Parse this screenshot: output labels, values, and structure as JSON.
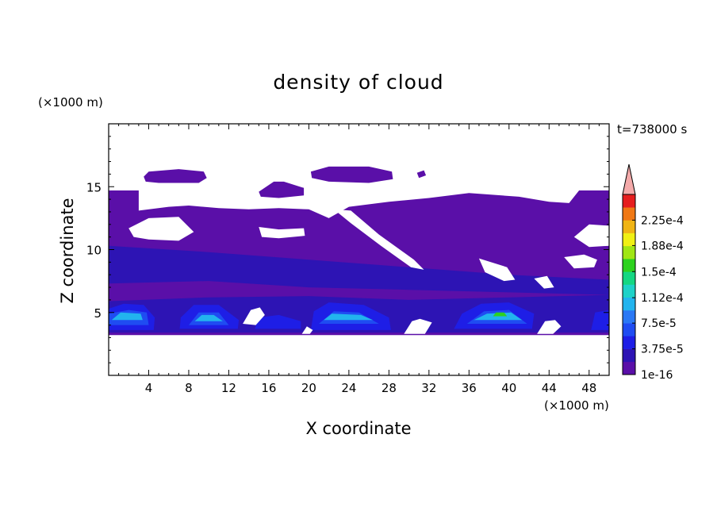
{
  "chart_data": {
    "type": "heatmap",
    "title": "density of cloud",
    "xlabel": "X coordinate",
    "ylabel": "Z coordinate",
    "x_unit": "(×1000 m)",
    "y_unit": "(×1000 m)",
    "time_label": "t=738000 s",
    "xlim": [
      0,
      50
    ],
    "ylim": [
      0,
      20
    ],
    "x_ticks": [
      4,
      8,
      12,
      16,
      20,
      24,
      28,
      32,
      36,
      40,
      44,
      48
    ],
    "y_ticks": [
      5,
      10,
      15
    ],
    "colorbar": {
      "labels": [
        "1e-16",
        "3.75e-5",
        "7.5e-5",
        "1.12e-4",
        "1.5e-4",
        "1.88e-4",
        "2.25e-4"
      ],
      "levels": [
        1e-16,
        1.875e-05,
        3.75e-05,
        5.625e-05,
        7.5e-05,
        9.375e-05,
        0.0001125,
        0.00013125,
        0.00015,
        0.00016875,
        0.0001875,
        0.00020625,
        0.000225,
        0.00024375
      ],
      "colors": [
        "#5a0fa8",
        "#2d14b4",
        "#1e1ee6",
        "#1f4cf2",
        "#2a78f5",
        "#22b4ee",
        "#1ed2c8",
        "#14d782",
        "#2dd21e",
        "#a0e614",
        "#f0f014",
        "#f0b414",
        "#f07814",
        "#e61e1e"
      ],
      "extend_color": "#f4aaaa"
    },
    "regions": [
      {
        "name": "main-cloud-band",
        "level": 0,
        "points": [
          [
            0,
            3.2
          ],
          [
            50,
            3.2
          ],
          [
            50,
            14.7
          ],
          [
            47,
            14.7
          ],
          [
            46,
            13.7
          ],
          [
            44,
            13.8
          ],
          [
            41,
            14.2
          ],
          [
            36,
            14.5
          ],
          [
            32,
            14.1
          ],
          [
            28,
            13.8
          ],
          [
            24,
            13.4
          ],
          [
            22,
            12.5
          ],
          [
            20,
            13.2
          ],
          [
            17,
            13.3
          ],
          [
            14,
            13.2
          ],
          [
            11,
            13.3
          ],
          [
            8,
            13.5
          ],
          [
            6,
            13.4
          ],
          [
            3,
            13.1
          ],
          [
            3,
            14.7
          ],
          [
            0,
            14.7
          ]
        ]
      },
      {
        "name": "cloud-puff-left",
        "level": 0,
        "points": [
          [
            3.5,
            15.8
          ],
          [
            4,
            16.2
          ],
          [
            7,
            16.4
          ],
          [
            9.5,
            16.2
          ],
          [
            9.8,
            15.7
          ],
          [
            9,
            15.3
          ],
          [
            5,
            15.3
          ],
          [
            3.7,
            15.4
          ]
        ]
      },
      {
        "name": "cloud-puff-mid",
        "level": 0,
        "points": [
          [
            15,
            14.6
          ],
          [
            16.5,
            15.4
          ],
          [
            17.5,
            15.4
          ],
          [
            19.5,
            14.9
          ],
          [
            19.5,
            14.3
          ],
          [
            17,
            14.1
          ],
          [
            15.2,
            14.2
          ]
        ]
      },
      {
        "name": "cloud-puff-top",
        "level": 0,
        "points": [
          [
            20.2,
            16.2
          ],
          [
            22,
            16.6
          ],
          [
            26,
            16.6
          ],
          [
            28.3,
            16.2
          ],
          [
            28.4,
            15.6
          ],
          [
            26,
            15.3
          ],
          [
            22,
            15.4
          ],
          [
            20.3,
            15.7
          ]
        ]
      },
      {
        "name": "cloud-speck",
        "level": 0,
        "points": [
          [
            30.8,
            16.1
          ],
          [
            31.5,
            16.3
          ],
          [
            31.7,
            15.9
          ],
          [
            31,
            15.7
          ]
        ]
      },
      {
        "name": "layer-7-12km",
        "level": 1,
        "points": [
          [
            0,
            7.3
          ],
          [
            10,
            7.5
          ],
          [
            20,
            7.0
          ],
          [
            30,
            6.8
          ],
          [
            40,
            6.6
          ],
          [
            50,
            6.4
          ],
          [
            50,
            7.6
          ],
          [
            40,
            8.0
          ],
          [
            30,
            8.6
          ],
          [
            20,
            9.2
          ],
          [
            10,
            9.8
          ],
          [
            0,
            10.3
          ]
        ]
      },
      {
        "name": "low-cloud-base",
        "level": 1,
        "points": [
          [
            0,
            3.4
          ],
          [
            50,
            3.4
          ],
          [
            50,
            6.4
          ],
          [
            40,
            6.2
          ],
          [
            30,
            6.0
          ],
          [
            20,
            6.3
          ],
          [
            10,
            6.2
          ],
          [
            0,
            5.9
          ]
        ]
      },
      {
        "name": "core-1",
        "level": 2,
        "points": [
          [
            0,
            3.6
          ],
          [
            4.5,
            3.6
          ],
          [
            4.6,
            4.6
          ],
          [
            3.5,
            5.6
          ],
          [
            1.5,
            5.7
          ],
          [
            0,
            5.3
          ]
        ]
      },
      {
        "name": "core-2",
        "level": 2,
        "points": [
          [
            7.1,
            3.7
          ],
          [
            12.9,
            3.7
          ],
          [
            13,
            4.4
          ],
          [
            11,
            5.6
          ],
          [
            8.5,
            5.6
          ],
          [
            7.2,
            4.6
          ]
        ]
      },
      {
        "name": "core-3",
        "level": 2,
        "points": [
          [
            14.6,
            3.7
          ],
          [
            19.2,
            3.7
          ],
          [
            19.2,
            4.3
          ],
          [
            17,
            4.8
          ],
          [
            15,
            4.6
          ]
        ]
      },
      {
        "name": "core-4",
        "level": 2,
        "points": [
          [
            20.2,
            3.6
          ],
          [
            28.2,
            3.6
          ],
          [
            28,
            4.6
          ],
          [
            25.5,
            5.6
          ],
          [
            22,
            5.8
          ],
          [
            20.5,
            5.1
          ]
        ]
      },
      {
        "name": "core-5",
        "level": 2,
        "points": [
          [
            34.5,
            3.7
          ],
          [
            42.3,
            3.7
          ],
          [
            42.5,
            4.9
          ],
          [
            40,
            5.8
          ],
          [
            37.2,
            5.7
          ],
          [
            35.3,
            4.9
          ]
        ]
      },
      {
        "name": "core-6",
        "level": 2,
        "points": [
          [
            48.2,
            3.6
          ],
          [
            50,
            3.6
          ],
          [
            50,
            5.2
          ],
          [
            48.6,
            5.0
          ]
        ]
      },
      {
        "name": "core-1-inner",
        "level": 3,
        "points": [
          [
            0,
            4.0
          ],
          [
            4,
            4.0
          ],
          [
            3.8,
            5.0
          ],
          [
            2,
            5.2
          ],
          [
            0,
            4.9
          ]
        ]
      },
      {
        "name": "core-2-inner",
        "level": 3,
        "points": [
          [
            8,
            4.0
          ],
          [
            12,
            4.0
          ],
          [
            11,
            5.0
          ],
          [
            9,
            5.0
          ]
        ]
      },
      {
        "name": "core-4-inner",
        "level": 3,
        "points": [
          [
            21,
            4.1
          ],
          [
            27,
            4.1
          ],
          [
            25,
            5.0
          ],
          [
            22.5,
            5.1
          ]
        ]
      },
      {
        "name": "core-5-inner",
        "level": 3,
        "points": [
          [
            35.8,
            4.1
          ],
          [
            41.8,
            4.1
          ],
          [
            40,
            5.2
          ],
          [
            37.5,
            5.1
          ]
        ]
      },
      {
        "name": "core-1-peak",
        "level": 5,
        "points": [
          [
            0.3,
            4.4
          ],
          [
            3.4,
            4.4
          ],
          [
            3.2,
            4.9
          ],
          [
            1.2,
            5.0
          ]
        ]
      },
      {
        "name": "core-2-peak",
        "level": 5,
        "points": [
          [
            8.6,
            4.3
          ],
          [
            11.4,
            4.3
          ],
          [
            10.5,
            4.8
          ],
          [
            9.3,
            4.8
          ]
        ]
      },
      {
        "name": "core-4-peak",
        "level": 5,
        "points": [
          [
            21.5,
            4.4
          ],
          [
            26.4,
            4.4
          ],
          [
            25.2,
            4.8
          ],
          [
            22.3,
            4.9
          ]
        ]
      },
      {
        "name": "core-5-peak",
        "level": 5,
        "points": [
          [
            36.5,
            4.4
          ],
          [
            41.3,
            4.4
          ],
          [
            40.2,
            5.0
          ],
          [
            37.8,
            4.9
          ]
        ]
      },
      {
        "name": "core-5-max",
        "level": 8,
        "points": [
          [
            38.4,
            4.7
          ],
          [
            39.8,
            4.7
          ],
          [
            39.5,
            5.0
          ],
          [
            38.7,
            5.0
          ]
        ]
      }
    ],
    "gaps": [
      {
        "name": "gap-upper-left",
        "points": [
          [
            2,
            11.7
          ],
          [
            4,
            12.5
          ],
          [
            7,
            12.6
          ],
          [
            8.5,
            11.4
          ],
          [
            7,
            10.7
          ],
          [
            4,
            10.8
          ],
          [
            2.5,
            11.0
          ]
        ]
      },
      {
        "name": "gap-upper-mid",
        "points": [
          [
            15,
            11.8
          ],
          [
            17,
            11.6
          ],
          [
            19.5,
            11.7
          ],
          [
            19.6,
            11.1
          ],
          [
            17,
            10.9
          ],
          [
            15.3,
            11.0
          ]
        ]
      },
      {
        "name": "gap-diagonal",
        "points": [
          [
            22.5,
            13.2
          ],
          [
            24.2,
            13.1
          ],
          [
            27,
            11.2
          ],
          [
            30.5,
            9.2
          ],
          [
            31.5,
            8.4
          ],
          [
            30.2,
            8.6
          ],
          [
            27.2,
            10.3
          ],
          [
            24.2,
            12.1
          ]
        ]
      },
      {
        "name": "gap-mid-right-1",
        "points": [
          [
            37,
            9.3
          ],
          [
            37.6,
            8.2
          ],
          [
            39.5,
            7.5
          ],
          [
            40.6,
            7.6
          ],
          [
            39.8,
            8.6
          ]
        ]
      },
      {
        "name": "gap-mid-right-2",
        "points": [
          [
            42.5,
            7.7
          ],
          [
            43.5,
            6.9
          ],
          [
            44.5,
            7.0
          ],
          [
            43.8,
            7.9
          ]
        ]
      },
      {
        "name": "gap-right-1",
        "points": [
          [
            46.5,
            11.0
          ],
          [
            48,
            10.2
          ],
          [
            50,
            10.3
          ],
          [
            50,
            11.9
          ],
          [
            48,
            12.0
          ]
        ]
      },
      {
        "name": "gap-right-2",
        "points": [
          [
            45.5,
            9.4
          ],
          [
            46.5,
            8.5
          ],
          [
            48.5,
            8.6
          ],
          [
            48.8,
            9.2
          ],
          [
            47.5,
            9.6
          ]
        ]
      },
      {
        "name": "gap-low-1",
        "points": [
          [
            13.4,
            4.1
          ],
          [
            14.2,
            5.2
          ],
          [
            15.1,
            5.4
          ],
          [
            15.6,
            4.8
          ],
          [
            14.7,
            4.0
          ]
        ]
      },
      {
        "name": "gap-low-2",
        "points": [
          [
            29.5,
            3.3
          ],
          [
            30.3,
            4.3
          ],
          [
            31.1,
            4.5
          ],
          [
            32.3,
            4.2
          ],
          [
            31.6,
            3.3
          ]
        ]
      },
      {
        "name": "gap-low-3",
        "points": [
          [
            42.8,
            3.3
          ],
          [
            43.6,
            4.3
          ],
          [
            44.6,
            4.4
          ],
          [
            45.2,
            3.9
          ],
          [
            44.4,
            3.3
          ]
        ]
      },
      {
        "name": "gap-low-4",
        "points": [
          [
            19.3,
            3.3
          ],
          [
            19.8,
            3.9
          ],
          [
            20.4,
            3.6
          ],
          [
            20.1,
            3.3
          ]
        ]
      }
    ]
  }
}
